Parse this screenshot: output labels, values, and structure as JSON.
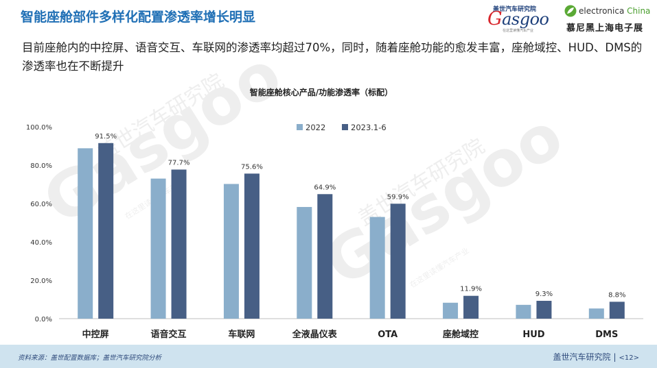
{
  "header": {
    "title": "智能座舱部件多样化配置渗透率增长明显",
    "subtitle": "目前座舱内的中控屏、语音交互、车联网的渗透率均超过70%，同时，随着座舱功能的愈发丰富，座舱域控、HUD、DMS的渗透率也在不断提升"
  },
  "logos": {
    "gasgoo_cn": "盖世汽车研究院",
    "gasgoo_word_first": "G",
    "gasgoo_word_rest": "asgoo",
    "gasgoo_tagline": "在这里读懂汽车产业",
    "electronica_prefix": "electronica ",
    "electronica_suffix": "China",
    "electronica_cn": "慕尼黑上海电子展"
  },
  "watermark": {
    "word": "Gasgoo",
    "cn": "盖世汽车研究院",
    "tagline": "在这里读懂汽车产业"
  },
  "chart_data": {
    "type": "bar",
    "title": "智能座舱核心产品/功能渗透率（标配）",
    "categories": [
      "中控屏",
      "语音交互",
      "车联网",
      "全液晶仪表",
      "OTA",
      "座舱域控",
      "HUD",
      "DMS"
    ],
    "series": [
      {
        "name": "2022",
        "color": "#8aaecb",
        "values": [
          88.8,
          73.0,
          70.2,
          58.2,
          53.0,
          8.3,
          7.2,
          5.3
        ],
        "labels": [
          "",
          "",
          "",
          "",
          "",
          "",
          "",
          ""
        ]
      },
      {
        "name": "2023.1-6",
        "color": "#475f85",
        "values": [
          91.5,
          77.7,
          75.6,
          64.9,
          59.9,
          11.9,
          9.3,
          8.8
        ],
        "labels": [
          "91.5%",
          "77.7%",
          "75.6%",
          "64.9%",
          "59.9%",
          "11.9%",
          "9.3%",
          "8.8%"
        ]
      }
    ],
    "yticks": [
      "0.0%",
      "20.0%",
      "40.0%",
      "60.0%",
      "80.0%",
      "100.0%"
    ],
    "ylim": [
      0,
      100
    ],
    "grid": false,
    "legend_position": "top-center"
  },
  "footer": {
    "source": "资料来源：盖世配置数据库；盖世汽车研究院分析",
    "org": "盖世汽车研究院",
    "separator": "|",
    "page": "<12>"
  },
  "colors": {
    "title_blue": "#1f6fb5",
    "footer_bg": "#cfe3ef",
    "series_2022": "#8aaecb",
    "series_2023": "#475f85"
  }
}
